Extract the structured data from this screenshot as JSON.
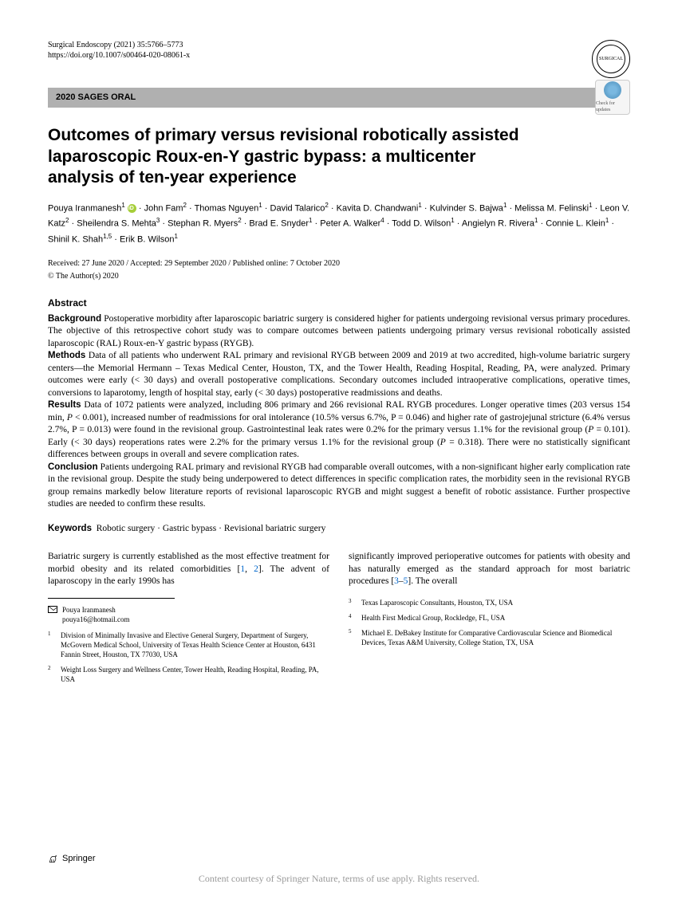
{
  "header": {
    "journal": "Surgical Endoscopy (2021) 35:5766–5773",
    "doi": "https://doi.org/10.1007/s00464-020-08061-x",
    "society_text": "SURGICAL"
  },
  "category": "2020 SAGES ORAL",
  "check_updates": "Check for updates",
  "title": "Outcomes of primary versus revisional robotically assisted laparoscopic Roux-en-Y gastric bypass: a multicenter analysis of ten-year experience",
  "authors_html": "Pouya Iranmanesh<sup>1</sup> <span class='orcid'></span> · John Fam<sup>2</sup> · Thomas Nguyen<sup>1</sup> · David Talarico<sup>2</sup> · Kavita D. Chandwani<sup>1</sup> · Kulvinder S. Bajwa<sup>1</sup> · Melissa M. Felinski<sup>1</sup> · Leon V. Katz<sup>2</sup> · Sheilendra S. Mehta<sup>3</sup> · Stephan R. Myers<sup>2</sup> · Brad E. Snyder<sup>1</sup> · Peter A. Walker<sup>4</sup> · Todd D. Wilson<sup>1</sup> · Angielyn R. Rivera<sup>1</sup> · Connie L. Klein<sup>1</sup> · Shinil K. Shah<sup>1,5</sup> · Erik B. Wilson<sup>1</sup>",
  "dates": "Received: 27 June 2020 / Accepted: 29 September 2020 / Published online: 7 October 2020",
  "copyright": "© The Author(s) 2020",
  "abstract": {
    "heading": "Abstract",
    "background_label": "Background",
    "background": "Postoperative morbidity after laparoscopic bariatric surgery is considered higher for patients undergoing revisional versus primary procedures. The objective of this retrospective cohort study was to compare outcomes between patients undergoing primary versus revisional robotically assisted laparoscopic (RAL) Roux-en-Y gastric bypass (RYGB).",
    "methods_label": "Methods",
    "methods": "Data of all patients who underwent RAL primary and revisional RYGB between 2009 and 2019 at two accredited, high-volume bariatric surgery centers—the Memorial Hermann – Texas Medical Center, Houston, TX, and the Tower Health, Reading Hospital, Reading, PA, were analyzed. Primary outcomes were early (< 30 days) and overall postoperative complications. Secondary outcomes included intraoperative complications, operative times, conversions to laparotomy, length of hospital stay, early (< 30 days) postoperative readmissions and deaths.",
    "results_label": "Results",
    "results_html": "Data of 1072 patients were analyzed, including 806 primary and 266 revisional RAL RYGB procedures. Longer operative times (203 versus 154 min, <span class='italic'>P</span> < 0.001), increased number of readmissions for oral intolerance (10.5% versus 6.7%, P = 0.046) and higher rate of gastrojejunal stricture (6.4% versus 2.7%, P = 0.013) were found in the revisional group. Gastrointestinal leak rates were 0.2% for the primary versus 1.1% for the revisional group (<span class='italic'>P</span> = 0.101). Early (< 30 days) reoperations rates were 2.2% for the primary versus 1.1% for the revisional group (<span class='italic'>P</span> = 0.318). There were no statistically significant differences between groups in overall and severe complication rates.",
    "conclusion_label": "Conclusion",
    "conclusion": "Patients undergoing RAL primary and revisional RYGB had comparable overall outcomes, with a non-significant higher early complication rate in the revisional group. Despite the study being underpowered to detect differences in specific complication rates, the morbidity seen in the revisional RYGB group remains markedly below literature reports of revisional laparoscopic RYGB and might suggest a benefit of robotic assistance. Further prospective studies are needed to confirm these results."
  },
  "keywords": {
    "label": "Keywords",
    "text": "Robotic surgery · Gastric bypass · Revisional bariatric surgery"
  },
  "body": {
    "col1_html": "Bariatric surgery is currently established as the most effective treatment for morbid obesity and its related comorbidities [<span class='ref-link'>1</span>, <span class='ref-link'>2</span>]. The advent of laparoscopy in the early 1990s has",
    "col2_html": "significantly improved perioperative outcomes for patients with obesity and has naturally emerged as the standard approach for most bariatric procedures [<span class='ref-link'>3</span>–<span class='ref-link'>5</span>]. The overall"
  },
  "correspondence": {
    "name": "Pouya Iranmanesh",
    "email": "pouya16@hotmail.com"
  },
  "affiliations": [
    {
      "n": "1",
      "text": "Division of Minimally Invasive and Elective General Surgery, Department of Surgery, McGovern Medical School, University of Texas Health Science Center at Houston, 6431 Fannin Street, Houston, TX 77030, USA"
    },
    {
      "n": "2",
      "text": "Weight Loss Surgery and Wellness Center, Tower Health, Reading Hospital, Reading, PA, USA"
    },
    {
      "n": "3",
      "text": "Texas Laparoscopic Consultants, Houston, TX, USA"
    },
    {
      "n": "4",
      "text": "Health First Medical Group, Rockledge, FL, USA"
    },
    {
      "n": "5",
      "text": "Michael E. DeBakey Institute for Comparative Cardiovascular Science and Biomedical Devices, Texas A&M University, College Station, TX, USA"
    }
  ],
  "publisher": "Springer",
  "footer": "Content courtesy of Springer Nature, terms of use apply. Rights reserved."
}
